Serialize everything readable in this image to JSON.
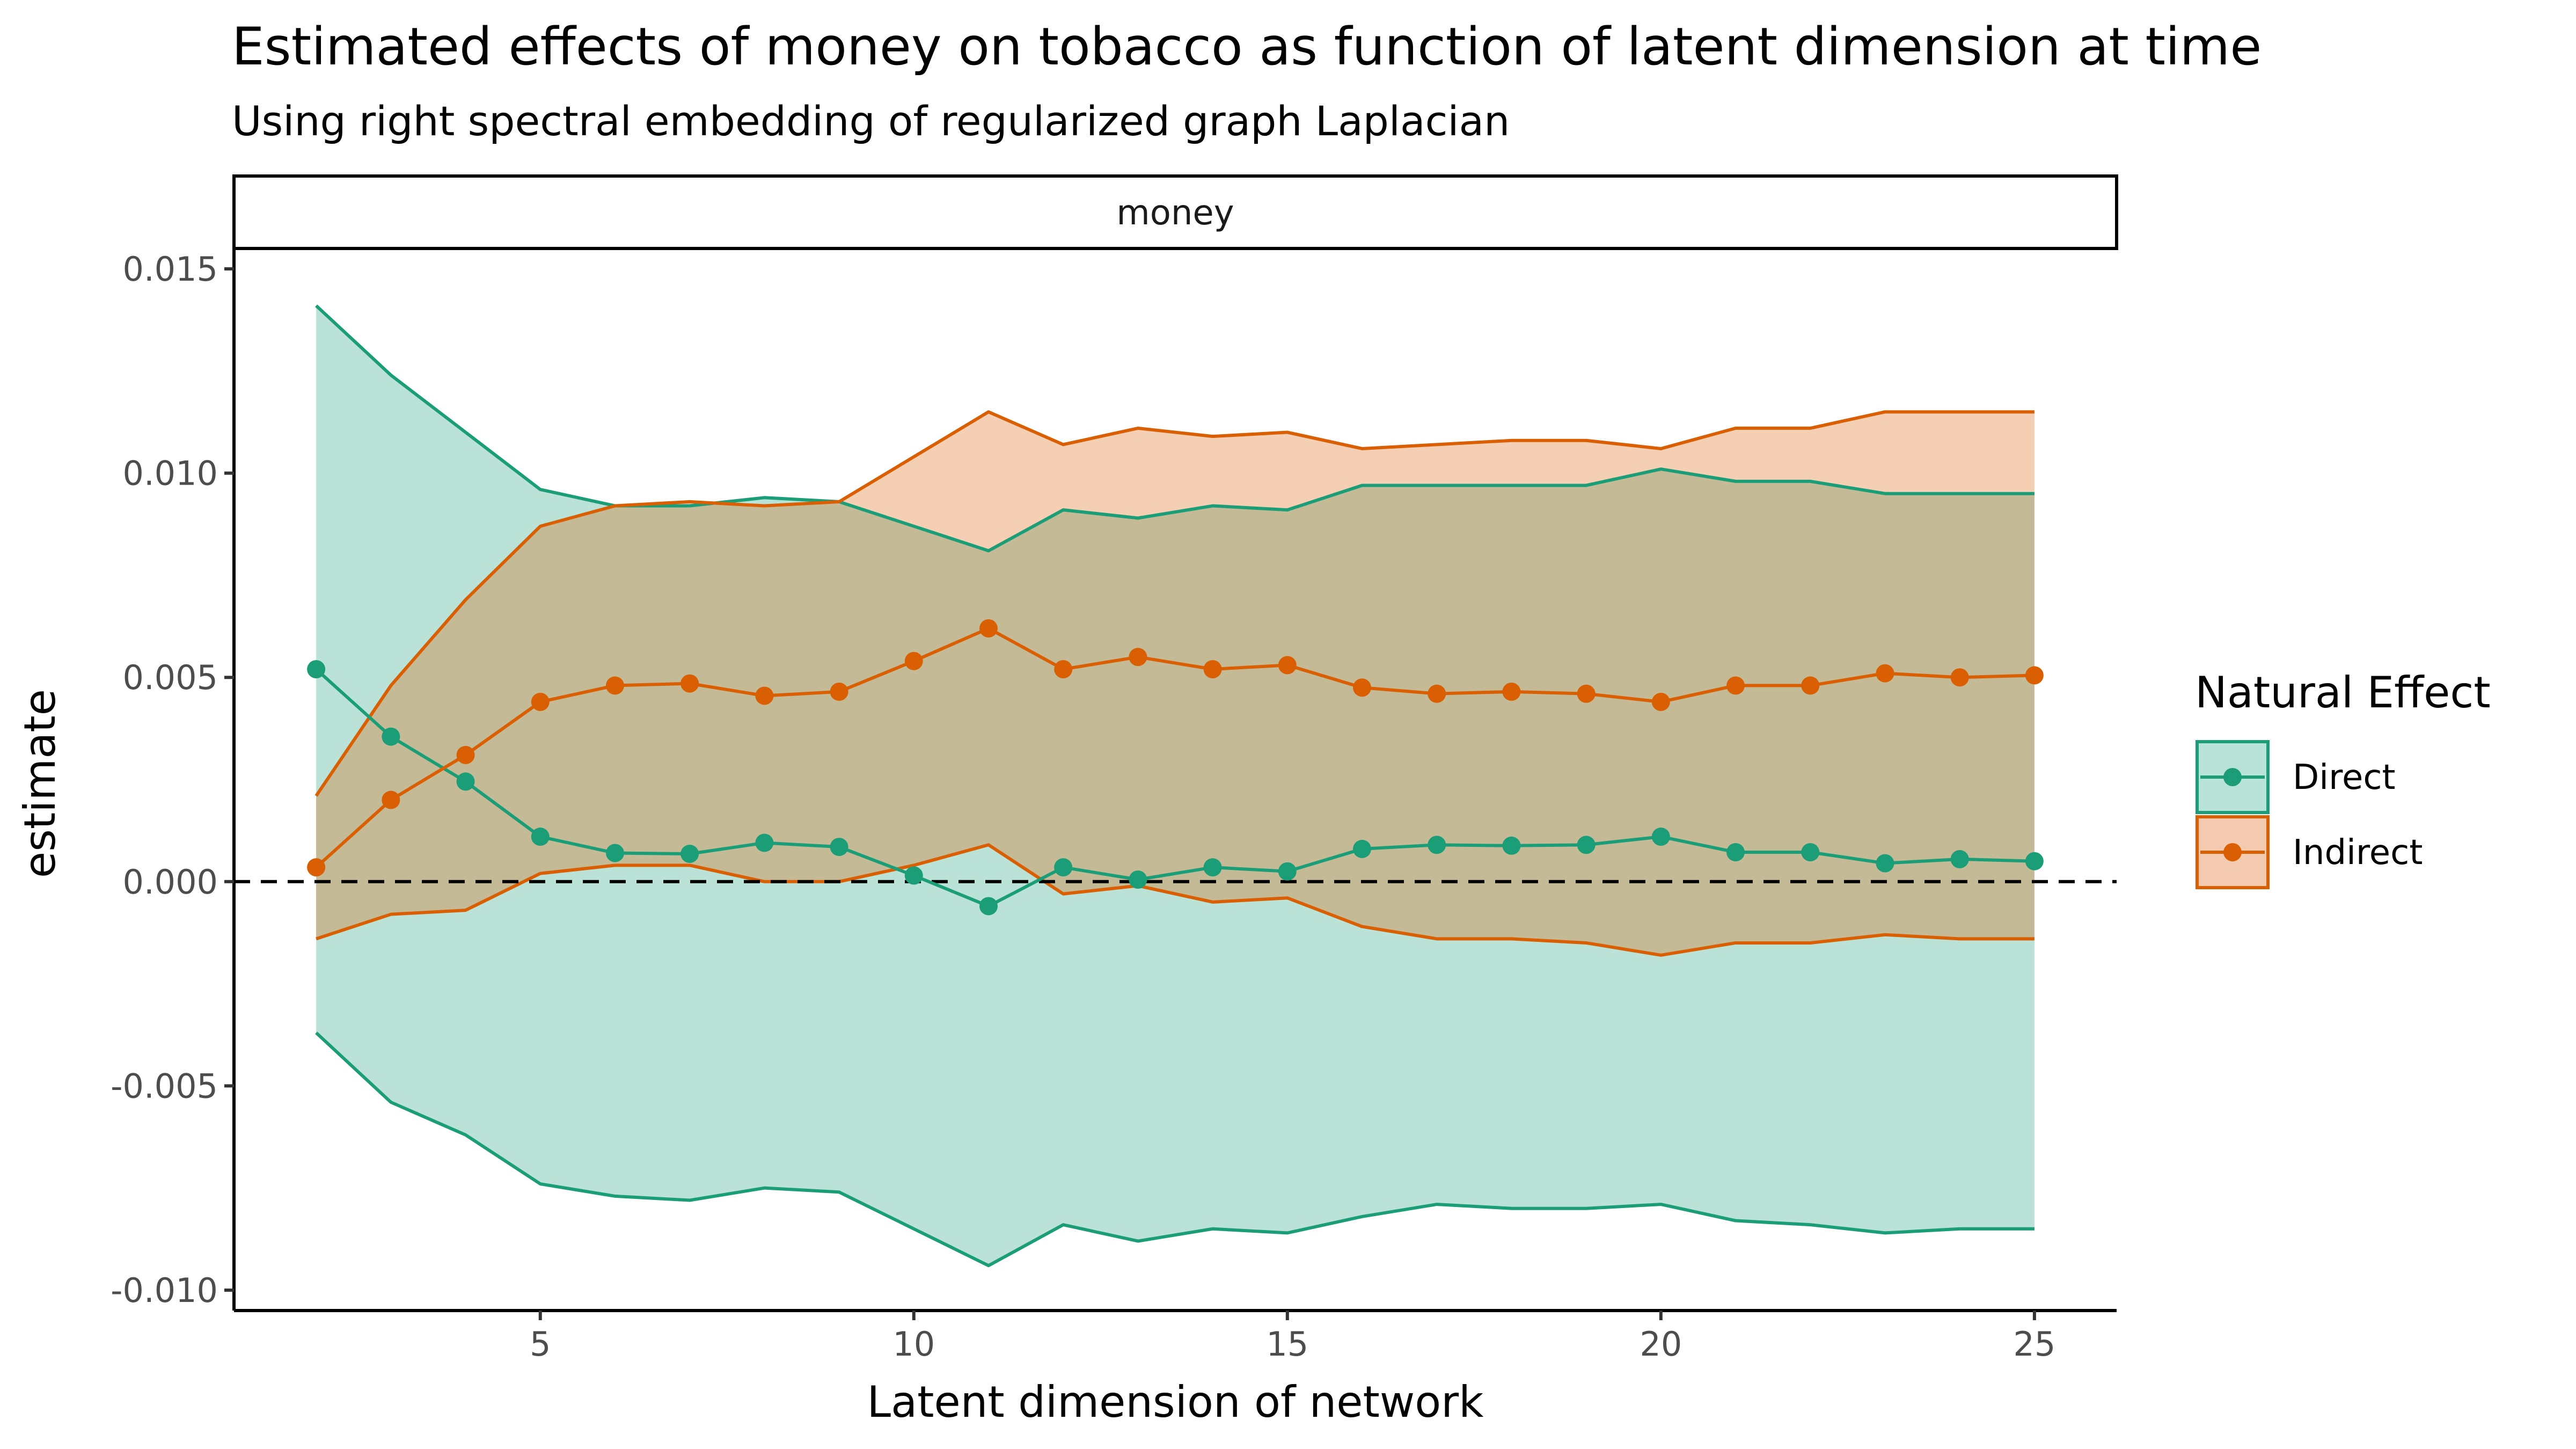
{
  "chart_data": {
    "type": "line",
    "title": "Estimated effects of money on tobacco as function of latent dimension at time",
    "subtitle": "Using right spectral embedding of regularized graph Laplacian",
    "facet_label": "money",
    "xlabel": "Latent dimension of network",
    "ylabel": "estimate",
    "xlim": [
      0.9,
      26.1
    ],
    "ylim": [
      -0.0105,
      0.0155
    ],
    "x_ticks": [
      5,
      10,
      15,
      20,
      25
    ],
    "x_tick_labels": [
      "5",
      "10",
      "15",
      "20",
      "25"
    ],
    "y_ticks": [
      -0.01,
      -0.005,
      0.0,
      0.005,
      0.01,
      0.015
    ],
    "y_tick_labels": [
      "-0.010",
      "-0.005",
      "0.000",
      "0.005",
      "0.010",
      "0.015"
    ],
    "reference_line": {
      "y": 0,
      "style": "dashed"
    },
    "grid": false,
    "legend": {
      "title": "Natural Effect",
      "position": "right"
    },
    "x": [
      2,
      3,
      4,
      5,
      6,
      7,
      8,
      9,
      10,
      11,
      12,
      13,
      14,
      15,
      16,
      17,
      18,
      19,
      20,
      21,
      22,
      23,
      24,
      25
    ],
    "series": [
      {
        "name": "Direct",
        "line_color": "#1b9e77",
        "fill_color": "#b9e2d8",
        "estimate": [
          0.0052,
          0.00355,
          0.00245,
          0.0011,
          0.0007,
          0.00068,
          0.00095,
          0.00085,
          0.00015,
          -0.0006,
          0.00035,
          5e-05,
          0.00035,
          0.00025,
          0.0008,
          0.0009,
          0.00088,
          0.0009,
          0.0011,
          0.00072,
          0.00072,
          0.00045,
          0.00055,
          0.0005
        ],
        "lower": [
          -0.0037,
          -0.0054,
          -0.0062,
          -0.0074,
          -0.0077,
          -0.0078,
          -0.0075,
          -0.0076,
          -0.0085,
          -0.0094,
          -0.0084,
          -0.0088,
          -0.0085,
          -0.0086,
          -0.0082,
          -0.0079,
          -0.008,
          -0.008,
          -0.0079,
          -0.0083,
          -0.0084,
          -0.0086,
          -0.0085,
          -0.0085
        ],
        "upper": [
          0.0141,
          0.0124,
          0.011,
          0.0096,
          0.0092,
          0.0092,
          0.0094,
          0.0093,
          0.0087,
          0.0081,
          0.0091,
          0.0089,
          0.0092,
          0.0091,
          0.0097,
          0.0097,
          0.0097,
          0.0097,
          0.0101,
          0.0098,
          0.0098,
          0.0095,
          0.0095,
          0.0095
        ]
      },
      {
        "name": "Indirect",
        "line_color": "#d95f02",
        "fill_color": "#f4cbb0",
        "estimate": [
          0.00035,
          0.002,
          0.0031,
          0.0044,
          0.0048,
          0.00485,
          0.00455,
          0.00465,
          0.0054,
          0.0062,
          0.0052,
          0.0055,
          0.0052,
          0.0053,
          0.00475,
          0.0046,
          0.00465,
          0.0046,
          0.0044,
          0.0048,
          0.0048,
          0.0051,
          0.005,
          0.00505
        ],
        "lower": [
          -0.0014,
          -0.0008,
          -0.0007,
          0.0002,
          0.0004,
          0.0004,
          0.0,
          0.0,
          0.0004,
          0.0009,
          -0.0003,
          -0.0001,
          -0.0005,
          -0.0004,
          -0.0011,
          -0.0014,
          -0.0014,
          -0.0015,
          -0.0018,
          -0.0015,
          -0.0015,
          -0.0013,
          -0.0014,
          -0.0014
        ],
        "upper": [
          0.0021,
          0.0048,
          0.0069,
          0.0087,
          0.0092,
          0.0093,
          0.0092,
          0.0093,
          0.0104,
          0.0115,
          0.0107,
          0.0111,
          0.0109,
          0.011,
          0.0106,
          0.0107,
          0.0108,
          0.0108,
          0.0106,
          0.0111,
          0.0111,
          0.0115,
          0.0115,
          0.0115
        ]
      }
    ]
  }
}
